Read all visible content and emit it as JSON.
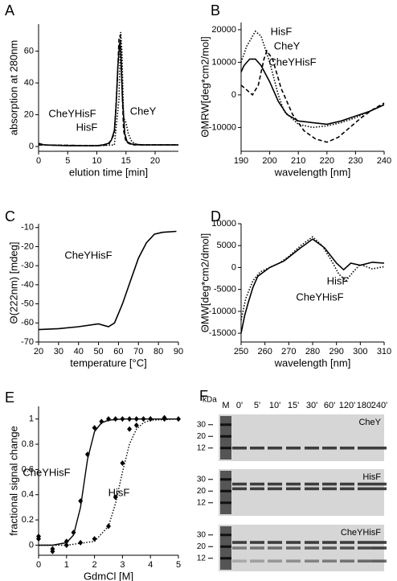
{
  "chart_data": [
    {
      "type": "line",
      "label": "A",
      "xlabel": "elution time [min]",
      "ylabel": "absorption at 280nm",
      "xlim": [
        0,
        24
      ],
      "xticks": [
        0,
        5,
        10,
        15,
        20
      ],
      "ylim": [
        -3,
        77
      ],
      "yticks": [
        0,
        20,
        40,
        60
      ],
      "series": [
        {
          "name": "CheYHisF",
          "color": "#000000",
          "style": "solid",
          "x": [
            0,
            1,
            5,
            10,
            11,
            12,
            12.5,
            13,
            13.3,
            13.6,
            13.9,
            14.1,
            14.4,
            14.8,
            15.2,
            16,
            18,
            20,
            24
          ],
          "values": [
            2,
            1,
            0.5,
            0.5,
            1,
            2,
            4,
            10,
            25,
            50,
            65,
            62,
            30,
            8,
            3,
            1.5,
            1,
            1,
            1
          ]
        },
        {
          "name": "HisF",
          "color": "#000000",
          "style": "dashed",
          "x": [
            0,
            10,
            12,
            13,
            13.5,
            13.8,
            14,
            14.2,
            14.6,
            15,
            16,
            24
          ],
          "values": [
            1,
            0.5,
            1,
            8,
            40,
            68,
            70,
            50,
            10,
            3,
            1,
            1
          ]
        },
        {
          "name": "CheY",
          "color": "#000000",
          "style": "dotted",
          "x": [
            0,
            10,
            13,
            13.8,
            14.1,
            14.3,
            14.6,
            15,
            15.4,
            16,
            17,
            24
          ],
          "values": [
            1,
            0.5,
            1,
            30,
            72,
            60,
            18,
            15,
            8,
            3,
            1,
            1
          ]
        }
      ]
    },
    {
      "type": "line",
      "label": "B",
      "xlabel": "wavelength [nm]",
      "ylabel": "ΘMRW[deg*cm2/mol]",
      "xlim": [
        190,
        240
      ],
      "xticks": [
        190,
        200,
        210,
        220,
        230,
        240
      ],
      "ylim": [
        -17300,
        22200
      ],
      "yticks": [
        -10000,
        0,
        10000,
        20000
      ],
      "series": [
        {
          "name": "CheYHisF",
          "color": "#000000",
          "style": "solid",
          "x": [
            190,
            191,
            193,
            195,
            197,
            200,
            203,
            206,
            210,
            215,
            220,
            225,
            230,
            235,
            240
          ],
          "values": [
            7000,
            9000,
            11000,
            11000,
            9000,
            4000,
            -2000,
            -6000,
            -8000,
            -8500,
            -9000,
            -8000,
            -6500,
            -5000,
            -3000
          ]
        },
        {
          "name": "HisF",
          "color": "#000000",
          "style": "dotted",
          "x": [
            190,
            192,
            195,
            197,
            200,
            203,
            205,
            210,
            215,
            220,
            225,
            230,
            235,
            240
          ],
          "values": [
            10000,
            15000,
            19500,
            18000,
            10000,
            0,
            -5000,
            -9000,
            -10000,
            -9500,
            -8500,
            -7000,
            -5000,
            -3000
          ]
        },
        {
          "name": "CheY",
          "color": "#000000",
          "style": "dashed",
          "x": [
            190,
            192,
            194,
            196,
            198,
            199,
            201,
            204,
            208,
            212,
            216,
            220,
            224,
            228,
            232,
            236,
            240
          ],
          "values": [
            3000,
            1500,
            0,
            3000,
            11000,
            13500,
            11000,
            2000,
            -6000,
            -11000,
            -13500,
            -14500,
            -13000,
            -10000,
            -7000,
            -4500,
            -2500
          ]
        }
      ]
    },
    {
      "type": "line",
      "label": "C",
      "xlabel": "temperature [°C]",
      "ylabel": "Θ(222nm) [mdeg]",
      "xlim": [
        20,
        90
      ],
      "xticks": [
        20,
        30,
        40,
        50,
        60,
        70,
        80,
        90
      ],
      "ylim": [
        -70,
        -8
      ],
      "yticks": [
        -70,
        -60,
        -50,
        -40,
        -30,
        -20,
        -10
      ],
      "series": [
        {
          "name": "CheYHisF",
          "color": "#000000",
          "style": "solid",
          "x": [
            20,
            30,
            40,
            50,
            55,
            58,
            62,
            66,
            70,
            74,
            78,
            82,
            89
          ],
          "values": [
            -63.5,
            -63,
            -62,
            -60.5,
            -62,
            -60,
            -50,
            -38,
            -26,
            -18,
            -13.5,
            -12.5,
            -12
          ]
        }
      ]
    },
    {
      "type": "line",
      "label": "D",
      "xlabel": "wavelength [nm]",
      "ylabel": "ΘMW[deg*cm2/dmol]",
      "xlim": [
        250,
        310
      ],
      "xticks": [
        250,
        260,
        270,
        280,
        290,
        300,
        310
      ],
      "ylim": [
        -17000,
        10000
      ],
      "yticks": [
        -15000,
        -10000,
        -5000,
        0,
        5000,
        10000
      ],
      "series": [
        {
          "name": "HisF",
          "color": "#000000",
          "style": "dotted",
          "x": [
            250,
            252,
            255,
            258,
            262,
            266,
            270,
            275,
            280,
            284,
            288,
            291,
            294,
            297,
            300,
            305,
            310
          ],
          "values": [
            -12000,
            -7000,
            -3000,
            -1000,
            0,
            1000,
            2500,
            5000,
            7000,
            5000,
            1500,
            -1500,
            -3000,
            -1000,
            700,
            -300,
            200
          ]
        },
        {
          "name": "CheYHisF",
          "color": "#000000",
          "style": "solid",
          "x": [
            250,
            251.5,
            253,
            255,
            257,
            262,
            268,
            275,
            280,
            285,
            290,
            293,
            296,
            300,
            305,
            310
          ],
          "values": [
            -15000,
            -11000,
            -8000,
            -4500,
            -2000,
            0,
            1500,
            4500,
            6500,
            4500,
            1000,
            -500,
            1000,
            500,
            1200,
            1000
          ]
        }
      ]
    },
    {
      "type": "scatter",
      "label": "E",
      "xlabel": "GdmCl [M]",
      "ylabel": "fractional signal change",
      "xlim": [
        0,
        5
      ],
      "xticks": [
        0,
        1,
        2,
        3,
        4,
        5
      ],
      "ylim": [
        -0.08,
        1.1
      ],
      "yticks": [
        0,
        0.2,
        0.4,
        0.6,
        0.8,
        1
      ],
      "series": [
        {
          "name": "CheYHisF",
          "color": "#000000",
          "style": "solid",
          "x": [
            0,
            0.5,
            1,
            1.25,
            1.5,
            1.75,
            2,
            2.25,
            2.5,
            2.75,
            3,
            3.25,
            3.5,
            3.75,
            4,
            4.5
          ],
          "values": [
            0.07,
            -0.05,
            0.03,
            0.1,
            0.35,
            0.72,
            0.93,
            0.98,
            1,
            1,
            1,
            1,
            1,
            1,
            1,
            1
          ],
          "fit_x": [
            0,
            0.5,
            1,
            1.25,
            1.5,
            1.75,
            2,
            2.25,
            2.5,
            3,
            5
          ],
          "fit_values": [
            0,
            0,
            0.02,
            0.08,
            0.3,
            0.68,
            0.9,
            0.97,
            0.99,
            1,
            1
          ]
        },
        {
          "name": "HisF",
          "color": "#000000",
          "style": "dotted",
          "x": [
            0,
            0.5,
            1,
            1.5,
            2,
            2.5,
            2.75,
            3,
            3.25,
            3.5,
            4,
            4.5,
            5
          ],
          "values": [
            0.05,
            -0.03,
            0,
            0.02,
            0.05,
            0.15,
            0.38,
            0.65,
            0.92,
            0.95,
            1,
            1.01,
            1
          ],
          "fit_x": [
            0,
            1,
            2,
            2.5,
            2.75,
            3,
            3.25,
            3.5,
            3.75,
            4,
            5
          ],
          "fit_values": [
            0,
            0,
            0.03,
            0.15,
            0.33,
            0.58,
            0.8,
            0.92,
            0.97,
            0.99,
            1
          ]
        }
      ]
    }
  ],
  "gel": {
    "label": "F",
    "unit": "kDa",
    "marker_lane": "M",
    "lanes": [
      "0'",
      "5'",
      "10'",
      "15'",
      "30'",
      "60'",
      "120'",
      "180'",
      "240'"
    ],
    "blots": [
      {
        "name": "CheY",
        "markers": [
          30,
          20,
          12
        ]
      },
      {
        "name": "HisF",
        "markers": [
          30,
          20,
          12
        ]
      },
      {
        "name": "CheYHisF",
        "markers": [
          30,
          20,
          12
        ]
      }
    ]
  }
}
